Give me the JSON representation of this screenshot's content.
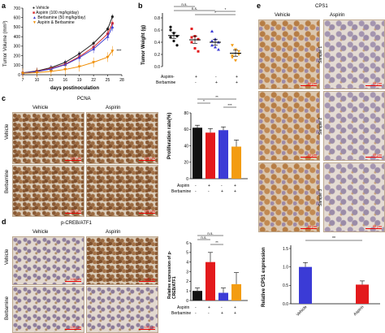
{
  "panels": {
    "a": {
      "label": "a",
      "legend": [
        "Vehicle",
        "Aspirin (100 mg/kg/day)",
        "Berbamine (50 mg/kg/day)",
        "Aspirin & Berbamine"
      ],
      "legend_colors": [
        "#222222",
        "#d62728",
        "#3c3ccf",
        "#f08c00"
      ],
      "ylabel": "Tumor Volume (mm³)",
      "xlabel": "days postinoculation",
      "xticks": [
        "7",
        "10",
        "13",
        "16",
        "19",
        "22",
        "25",
        "28"
      ],
      "yticks": [
        "0",
        "100",
        "200",
        "300",
        "400",
        "500",
        "600",
        "700"
      ],
      "sig": "***"
    },
    "b": {
      "label": "b",
      "ylabel": "Tumor Weight (g)",
      "yticks": [
        "0.0",
        "0.2",
        "0.4",
        "0.6",
        "0.8"
      ],
      "sig_labels": [
        "n.s.",
        "n.s.",
        "*",
        "*"
      ],
      "row_labels": [
        "Aspirin",
        "Berbamine"
      ],
      "row_signs": [
        [
          "-",
          "+",
          "-",
          "+"
        ],
        [
          "-",
          "-",
          "+",
          "+"
        ]
      ]
    },
    "c": {
      "label": "c",
      "title": "PCNA",
      "col_labels": [
        "Vehicle",
        "Aspirin"
      ],
      "row_labels": [
        "Vehicle",
        "Berbamine"
      ],
      "scale": "100 μm",
      "ylabel": "Proliferation rate(%)",
      "yticks": [
        "0",
        "20",
        "40",
        "60",
        "80"
      ],
      "sig_labels": [
        "*",
        "**",
        "***"
      ],
      "bar_rows": [
        "Aspirin",
        "Berbamine"
      ],
      "row_signs": [
        [
          "-",
          "+",
          "-",
          "+"
        ],
        [
          "-",
          "-",
          "+",
          "+"
        ]
      ]
    },
    "d": {
      "label": "d",
      "title": "p-CREB/ATF1",
      "col_labels": [
        "Vehicle",
        "Aspirin"
      ],
      "row_labels": [
        "Vehicle",
        "Berbamine"
      ],
      "scale": "100 μm",
      "ylabel": "Relative expression of p-CREB/ATF1",
      "yticks": [
        "0",
        "1",
        "2",
        "3",
        "4",
        "5",
        "6"
      ],
      "sig_labels": [
        "n.s.",
        "n.s.",
        "**"
      ],
      "bar_rows": [
        "Aspirin",
        "Berbamine"
      ],
      "row_signs": [
        [
          "-",
          "+",
          "-",
          "+"
        ],
        [
          "-",
          "-",
          "+",
          "+"
        ]
      ]
    },
    "e": {
      "label": "e",
      "title": "CPS1",
      "col_labels": [
        "Vehicle",
        "Aspirin"
      ],
      "row_labels": [
        "Sample 1",
        "Sample 2",
        "Sample 3"
      ],
      "scale": "50 μm",
      "ylabel": "Relative CPS1 expression",
      "yticks": [
        "0.0",
        "0.5",
        "1.0",
        "1.5"
      ],
      "xticks": [
        "Vehicle",
        "Aspirin"
      ],
      "sig": "**"
    }
  },
  "chart_data": [
    {
      "type": "line",
      "panel": "a",
      "x": [
        7,
        10,
        13,
        16,
        19,
        22,
        25,
        26
      ],
      "ylim": [
        0,
        700
      ],
      "xlim": [
        7,
        28
      ],
      "series": [
        {
          "name": "Vehicle",
          "values": [
            20,
            40,
            75,
            130,
            220,
            330,
            480,
            610
          ]
        },
        {
          "name": "Aspirin (100 mg/kg/day)",
          "values": [
            18,
            35,
            65,
            110,
            190,
            290,
            430,
            540
          ]
        },
        {
          "name": "Berbamine (50 mg/kg/day)",
          "values": [
            18,
            33,
            60,
            105,
            180,
            270,
            400,
            500
          ]
        },
        {
          "name": "Aspirin & Berbamine",
          "values": [
            15,
            22,
            35,
            55,
            85,
            130,
            185,
            250
          ]
        }
      ]
    },
    {
      "type": "scatter",
      "panel": "b",
      "categories": [
        "Vehicle",
        "Aspirin",
        "Berbamine",
        "Aspirin & Berbamine"
      ],
      "means": [
        0.51,
        0.44,
        0.4,
        0.22
      ],
      "sem": [
        0.05,
        0.06,
        0.05,
        0.05
      ],
      "points": [
        [
          0.65,
          0.55,
          0.5,
          0.48,
          0.42,
          0.35,
          0.6
        ],
        [
          0.62,
          0.5,
          0.45,
          0.4,
          0.3,
          0.25,
          0.48
        ],
        [
          0.58,
          0.45,
          0.4,
          0.35,
          0.32,
          0.28,
          0.42
        ],
        [
          0.35,
          0.28,
          0.2,
          0.15,
          0.1,
          0.25,
          0.18
        ]
      ],
      "ylim": [
        0,
        0.8
      ]
    },
    {
      "type": "bar",
      "panel": "c",
      "categories": [
        "Vehicle",
        "Aspirin",
        "Berbamine",
        "Aspirin & Berbamine"
      ],
      "values": [
        62,
        56,
        59,
        39
      ],
      "errors": [
        3,
        5,
        4,
        8
      ],
      "ylim": [
        0,
        80
      ]
    },
    {
      "type": "bar",
      "panel": "d",
      "categories": [
        "Vehicle",
        "Aspirin",
        "Berbamine",
        "Aspirin & Berbamine"
      ],
      "values": [
        1.0,
        4.0,
        0.8,
        1.7
      ],
      "errors": [
        0.3,
        1.0,
        0.5,
        1.2
      ],
      "ylim": [
        0,
        6
      ]
    },
    {
      "type": "bar",
      "panel": "e",
      "categories": [
        "Vehicle",
        "Aspirin"
      ],
      "values": [
        1.0,
        0.52
      ],
      "errors": [
        0.12,
        0.1
      ],
      "ylim": [
        0,
        1.5
      ]
    }
  ],
  "colors": {
    "black": "#111111",
    "red": "#e31a1c",
    "blue": "#3b3bd6",
    "orange": "#f39c12"
  }
}
